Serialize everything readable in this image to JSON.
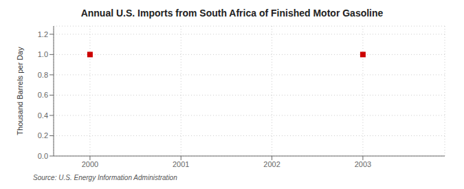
{
  "chart_data": {
    "type": "scatter",
    "title": "Annual U.S. Imports from South Africa of Finished Motor Gasoline",
    "y_label": "Thousand Barrels per Day",
    "source": "Source: U.S. Energy Information Administration",
    "x": [
      2000,
      2003
    ],
    "values": [
      1.0,
      1.0
    ],
    "color": "#cc0000",
    "marker": "square",
    "xlim": [
      1999.6,
      2003.9
    ],
    "ylim": [
      0.0,
      1.28
    ],
    "xticks": [
      2000,
      2001,
      2002,
      2003
    ],
    "yticks": [
      {
        "value": 0,
        "label": "0.0"
      },
      0.2,
      0.4,
      0.6,
      0.8,
      {
        "value": 1,
        "label": "1.0"
      },
      1.2
    ],
    "grid": true
  }
}
